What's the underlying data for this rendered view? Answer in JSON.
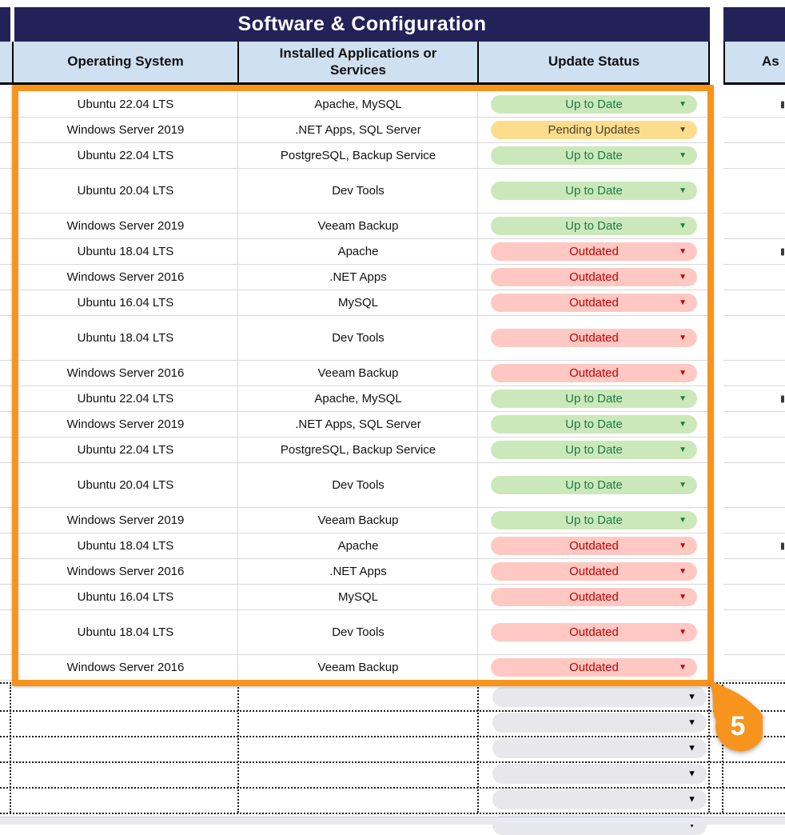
{
  "section_title": "Software & Configuration",
  "next_section": {
    "header_fragment": "As"
  },
  "columns": {
    "os": "Operating System",
    "apps": "Installed Applications or Services",
    "status": "Update Status"
  },
  "status_styles": {
    "up": {
      "label": "Up to Date",
      "bg": "#cbe8ba",
      "text": "#1e7a45"
    },
    "pending": {
      "label": "Pending Updates",
      "bg": "#fcdd8d",
      "text": "#4a432c"
    },
    "outdated": {
      "label": "Outdated",
      "bg": "#ffc8c3",
      "text": "#c00000"
    }
  },
  "rows": [
    {
      "os": "Ubuntu 22.04 LTS",
      "apps": "Apache, MySQL",
      "status": "up",
      "tall": false,
      "edge_mark": true
    },
    {
      "os": "Windows Server 2019",
      "apps": ".NET Apps, SQL Server",
      "status": "pending",
      "tall": false,
      "edge_mark": false
    },
    {
      "os": "Ubuntu 22.04 LTS",
      "apps": "PostgreSQL, Backup Service",
      "status": "up",
      "tall": false,
      "edge_mark": false
    },
    {
      "os": "Ubuntu 20.04 LTS",
      "apps": "Dev Tools",
      "status": "up",
      "tall": true,
      "edge_mark": false
    },
    {
      "os": "Windows Server 2019",
      "apps": "Veeam Backup",
      "status": "up",
      "tall": false,
      "edge_mark": false
    },
    {
      "os": "Ubuntu 18.04 LTS",
      "apps": "Apache",
      "status": "outdated",
      "tall": false,
      "edge_mark": true
    },
    {
      "os": "Windows Server 2016",
      "apps": ".NET Apps",
      "status": "outdated",
      "tall": false,
      "edge_mark": false
    },
    {
      "os": "Ubuntu 16.04 LTS",
      "apps": "MySQL",
      "status": "outdated",
      "tall": false,
      "edge_mark": false
    },
    {
      "os": "Ubuntu 18.04 LTS",
      "apps": "Dev Tools",
      "status": "outdated",
      "tall": true,
      "edge_mark": false
    },
    {
      "os": "Windows Server 2016",
      "apps": "Veeam Backup",
      "status": "outdated",
      "tall": false,
      "edge_mark": false
    },
    {
      "os": "Ubuntu 22.04 LTS",
      "apps": "Apache, MySQL",
      "status": "up",
      "tall": false,
      "edge_mark": true
    },
    {
      "os": "Windows Server 2019",
      "apps": ".NET Apps, SQL Server",
      "status": "up",
      "tall": false,
      "edge_mark": false
    },
    {
      "os": "Ubuntu 22.04 LTS",
      "apps": "PostgreSQL, Backup Service",
      "status": "up",
      "tall": false,
      "edge_mark": false
    },
    {
      "os": "Ubuntu 20.04 LTS",
      "apps": "Dev Tools",
      "status": "up",
      "tall": true,
      "edge_mark": false
    },
    {
      "os": "Windows Server 2019",
      "apps": "Veeam Backup",
      "status": "up",
      "tall": false,
      "edge_mark": false
    },
    {
      "os": "Ubuntu 18.04 LTS",
      "apps": "Apache",
      "status": "outdated",
      "tall": false,
      "edge_mark": true
    },
    {
      "os": "Windows Server 2016",
      "apps": ".NET Apps",
      "status": "outdated",
      "tall": false,
      "edge_mark": false
    },
    {
      "os": "Ubuntu 16.04 LTS",
      "apps": "MySQL",
      "status": "outdated",
      "tall": false,
      "edge_mark": false
    },
    {
      "os": "Ubuntu 18.04 LTS",
      "apps": "Dev Tools",
      "status": "outdated",
      "tall": true,
      "edge_mark": false
    },
    {
      "os": "Windows Server 2016",
      "apps": "Veeam Backup",
      "status": "outdated",
      "tall": false,
      "edge_mark": false
    }
  ],
  "empty_section": {
    "count": 6
  },
  "badge": {
    "label": "5",
    "color": "#f7941e"
  },
  "icons": {
    "chevron_down": "▼"
  },
  "colors": {
    "banner": "#232258",
    "header_bg": "#cfe0f0",
    "selection": "#f7941e",
    "grid": "#d9d9d9"
  }
}
